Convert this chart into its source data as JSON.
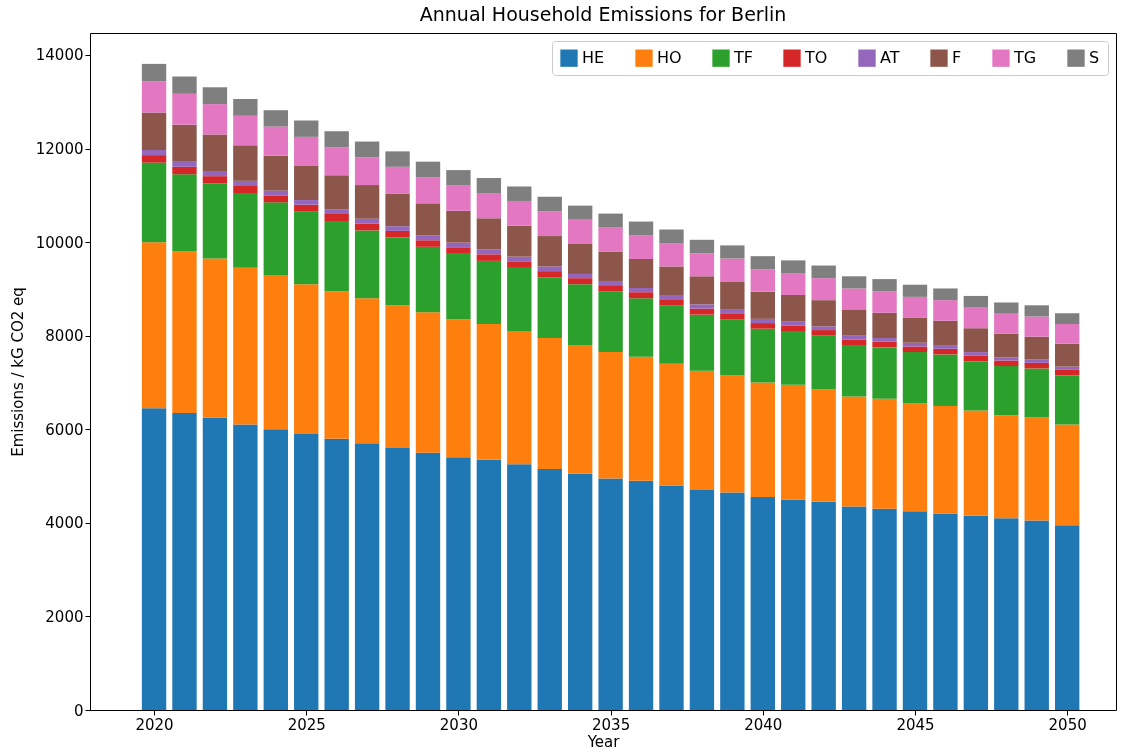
{
  "chart_data": {
    "type": "bar",
    "stacked": true,
    "title": "Annual Household Emissions for Berlin",
    "xlabel": "Year",
    "ylabel": "Emissions / kG CO2 eq",
    "x": [
      2020,
      2021,
      2022,
      2023,
      2024,
      2025,
      2026,
      2027,
      2028,
      2029,
      2030,
      2031,
      2032,
      2033,
      2034,
      2035,
      2036,
      2037,
      2038,
      2039,
      2040,
      2041,
      2042,
      2043,
      2044,
      2045,
      2046,
      2047,
      2048,
      2049,
      2050
    ],
    "xlim": [
      2018.06,
      2051.44
    ],
    "xticks": [
      2020,
      2025,
      2030,
      2035,
      2040,
      2045,
      2050
    ],
    "ylim": [
      0,
      14470
    ],
    "yticks": [
      0,
      2000,
      4000,
      6000,
      8000,
      10000,
      12000,
      14000
    ],
    "grid": false,
    "legend": "top right",
    "series": [
      {
        "name": "HE",
        "color": "#1f77b4",
        "values": [
          6450,
          6350,
          6250,
          6100,
          6000,
          5900,
          5800,
          5700,
          5600,
          5500,
          5400,
          5350,
          5250,
          5150,
          5050,
          4950,
          4900,
          4800,
          4700,
          4650,
          4550,
          4500,
          4450,
          4350,
          4300,
          4250,
          4200,
          4150,
          4100,
          4050,
          3950
        ]
      },
      {
        "name": "HO",
        "color": "#ff7f0e",
        "values": [
          3550,
          3450,
          3400,
          3350,
          3300,
          3200,
          3150,
          3100,
          3050,
          3000,
          2950,
          2900,
          2850,
          2800,
          2750,
          2700,
          2650,
          2600,
          2550,
          2500,
          2450,
          2450,
          2400,
          2350,
          2350,
          2300,
          2300,
          2250,
          2200,
          2200,
          2150
        ]
      },
      {
        "name": "TF",
        "color": "#2ca02c",
        "values": [
          1700,
          1650,
          1600,
          1600,
          1550,
          1550,
          1500,
          1450,
          1450,
          1400,
          1400,
          1350,
          1350,
          1300,
          1300,
          1300,
          1250,
          1250,
          1200,
          1200,
          1150,
          1150,
          1150,
          1100,
          1100,
          1100,
          1100,
          1050,
          1050,
          1050,
          1050
        ]
      },
      {
        "name": "TO",
        "color": "#d62728",
        "values": [
          160,
          160,
          160,
          150,
          150,
          150,
          150,
          150,
          140,
          140,
          140,
          140,
          140,
          130,
          130,
          130,
          130,
          130,
          130,
          130,
          120,
          120,
          120,
          120,
          120,
          120,
          120,
          120,
          120,
          120,
          120
        ]
      },
      {
        "name": "AT",
        "color": "#9467bd",
        "values": [
          110,
          110,
          110,
          110,
          100,
          100,
          100,
          100,
          100,
          100,
          100,
          100,
          100,
          100,
          90,
          90,
          90,
          90,
          90,
          90,
          90,
          80,
          80,
          80,
          80,
          80,
          80,
          80,
          70,
          70,
          70
        ]
      },
      {
        "name": "F",
        "color": "#8c564b",
        "values": [
          800,
          790,
          780,
          760,
          750,
          740,
          730,
          720,
          700,
          690,
          680,
          670,
          660,
          650,
          640,
          630,
          620,
          610,
          600,
          590,
          580,
          570,
          560,
          550,
          540,
          530,
          520,
          510,
          500,
          490,
          490
        ]
      },
      {
        "name": "TG",
        "color": "#e377c2",
        "values": [
          670,
          660,
          650,
          630,
          620,
          610,
          600,
          590,
          570,
          560,
          550,
          540,
          530,
          530,
          520,
          510,
          500,
          500,
          490,
          490,
          480,
          470,
          470,
          460,
          460,
          450,
          440,
          440,
          430,
          430,
          420
        ]
      },
      {
        "name": "S",
        "color": "#7f7f7f",
        "values": [
          370,
          370,
          360,
          360,
          350,
          350,
          340,
          340,
          330,
          330,
          320,
          320,
          310,
          310,
          300,
          300,
          300,
          290,
          290,
          280,
          280,
          270,
          270,
          260,
          260,
          260,
          250,
          250,
          240,
          240,
          230
        ]
      }
    ]
  }
}
